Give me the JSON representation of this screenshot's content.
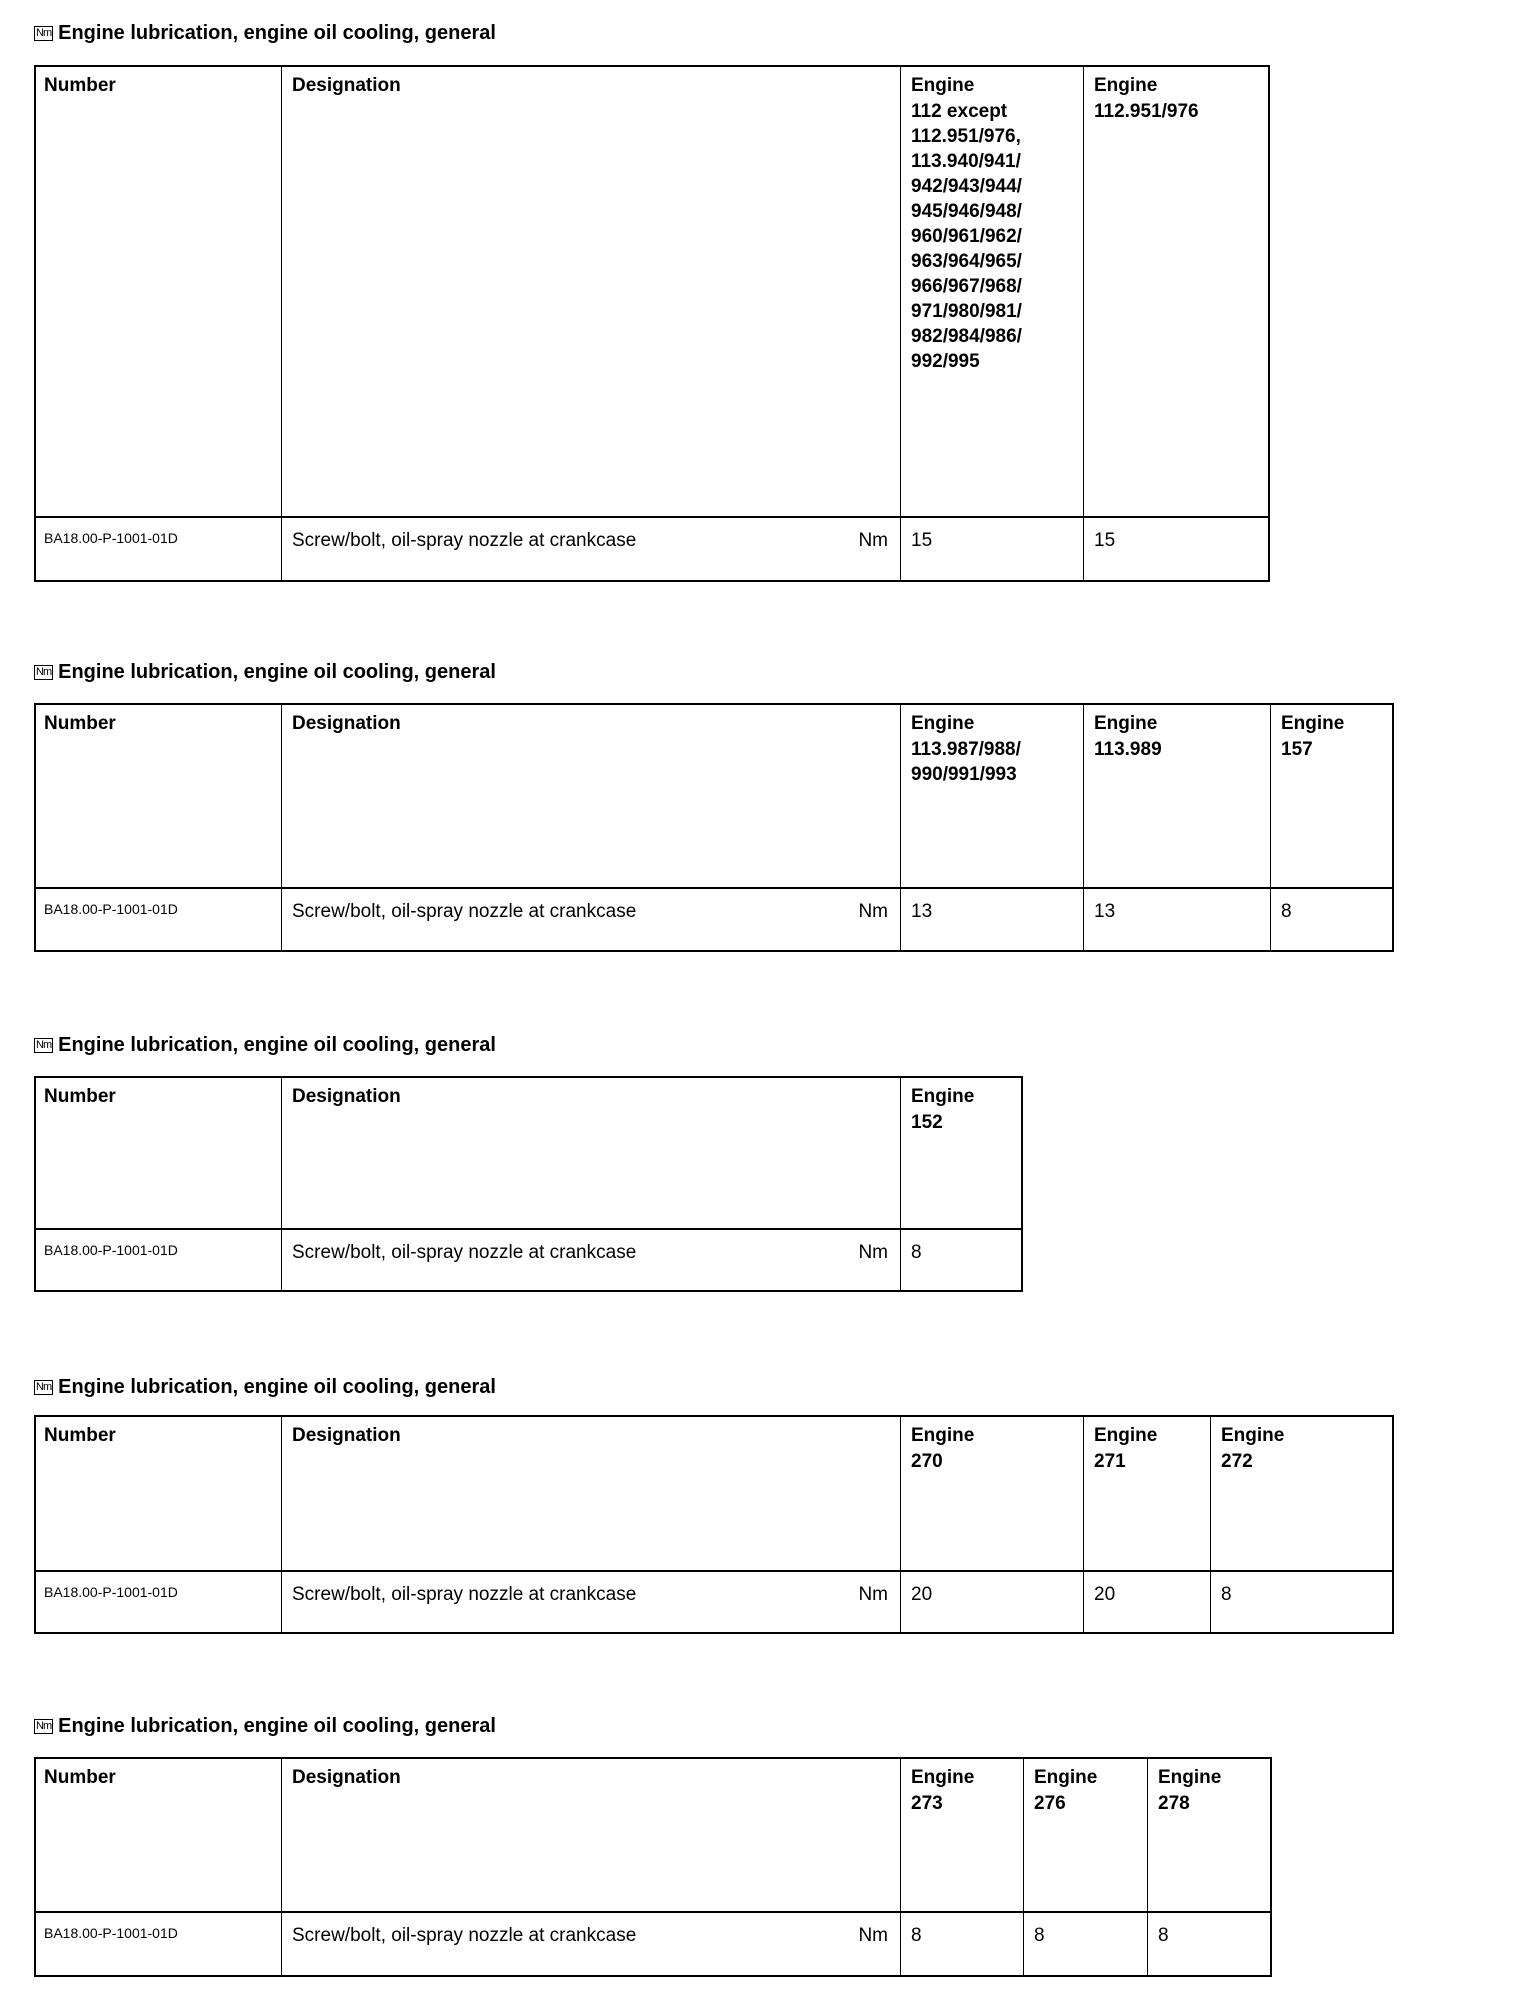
{
  "sections": [
    {
      "title": "Engine lubrication, engine oil cooling, general",
      "icon": "Nm",
      "headers": {
        "number": "Number",
        "designation": "Designation"
      },
      "engines": [
        {
          "label": "Engine",
          "variant": "112 except 112.951/976, 113.940/941/ 942/943/944/ 945/946/948/ 960/961/962/ 963/964/965/ 966/967/968/ 971/980/981/ 982/984/986/ 992/995",
          "value": "15"
        },
        {
          "label": "Engine",
          "variant": "112.951/976",
          "value": "15"
        }
      ],
      "row": {
        "number": "BA18.00-P-1001-01D",
        "designation": "Screw/bolt, oil-spray nozzle at crankcase",
        "unit": "Nm"
      }
    },
    {
      "title": "Engine lubrication, engine oil cooling, general",
      "icon": "Nm",
      "headers": {
        "number": "Number",
        "designation": "Designation"
      },
      "engines": [
        {
          "label": "Engine",
          "variant": "113.987/988/ 990/991/993",
          "value": "13"
        },
        {
          "label": "Engine",
          "variant": "113.989",
          "value": "13"
        },
        {
          "label": "Engine",
          "variant": "157",
          "value": "8"
        }
      ],
      "row": {
        "number": "BA18.00-P-1001-01D",
        "designation": "Screw/bolt, oil-spray nozzle at crankcase",
        "unit": "Nm"
      }
    },
    {
      "title": "Engine lubrication, engine oil cooling, general",
      "icon": "Nm",
      "headers": {
        "number": "Number",
        "designation": "Designation"
      },
      "engines": [
        {
          "label": "Engine",
          "variant": "152",
          "value": "8"
        }
      ],
      "row": {
        "number": "BA18.00-P-1001-01D",
        "designation": "Screw/bolt, oil-spray nozzle at crankcase",
        "unit": "Nm"
      }
    },
    {
      "title": "Engine lubrication, engine oil cooling, general",
      "icon": "Nm",
      "headers": {
        "number": "Number",
        "designation": "Designation"
      },
      "engines": [
        {
          "label": "Engine",
          "variant": "270",
          "value": "20"
        },
        {
          "label": "Engine",
          "variant": "271",
          "value": "20"
        },
        {
          "label": "Engine",
          "variant": "272",
          "value": "8"
        }
      ],
      "row": {
        "number": "BA18.00-P-1001-01D",
        "designation": "Screw/bolt, oil-spray nozzle at crankcase",
        "unit": "Nm"
      }
    },
    {
      "title": "Engine lubrication, engine oil cooling, general",
      "icon": "Nm",
      "headers": {
        "number": "Number",
        "designation": "Designation"
      },
      "engines": [
        {
          "label": "Engine",
          "variant": "273",
          "value": "8"
        },
        {
          "label": "Engine",
          "variant": "276",
          "value": "8"
        },
        {
          "label": "Engine",
          "variant": "278",
          "value": "8"
        }
      ],
      "row": {
        "number": "BA18.00-P-1001-01D",
        "designation": "Screw/bolt, oil-spray nozzle at crankcase",
        "unit": "Nm"
      }
    }
  ]
}
